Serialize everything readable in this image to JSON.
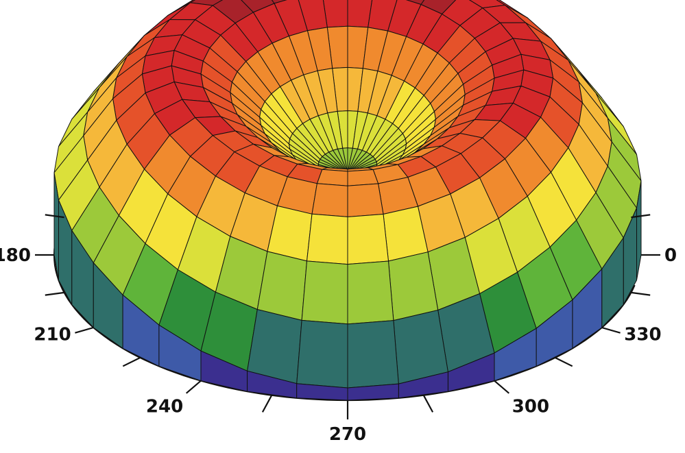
{
  "chart_data": {
    "type": "surface-3d-polar",
    "title": "",
    "axis": {
      "kind": "angular",
      "unit": "degrees",
      "labeled_ticks": [
        {
          "angle": 0,
          "label": "0"
        },
        {
          "angle": 180,
          "label": "180"
        },
        {
          "angle": 210,
          "label": "210"
        },
        {
          "angle": 240,
          "label": "240"
        },
        {
          "angle": 270,
          "label": "270"
        },
        {
          "angle": 300,
          "label": "300"
        },
        {
          "angle": 330,
          "label": "330"
        }
      ],
      "minor_ticks": [
        15,
        165,
        195,
        225,
        255,
        285,
        315,
        345
      ]
    },
    "surface": {
      "angular_divisions": 36,
      "radial_divisions": 10,
      "height_range": [
        0,
        1
      ],
      "profile": {
        "radius": [
          0.0,
          0.1,
          0.2,
          0.3,
          0.4,
          0.5,
          0.6,
          0.7,
          0.8,
          0.9,
          1.0
        ],
        "height_at_0": [
          0.4,
          0.44,
          0.54,
          0.66,
          0.78,
          0.86,
          0.9,
          0.86,
          0.74,
          0.55,
          0.36
        ],
        "height_at_90": [
          0.4,
          0.45,
          0.56,
          0.7,
          0.83,
          0.93,
          0.97,
          0.95,
          0.86,
          0.72,
          0.56
        ],
        "height_at_180": [
          0.4,
          0.44,
          0.54,
          0.67,
          0.79,
          0.88,
          0.92,
          0.88,
          0.76,
          0.58,
          0.4
        ],
        "height_at_270": [
          0.4,
          0.43,
          0.5,
          0.6,
          0.7,
          0.76,
          0.76,
          0.68,
          0.52,
          0.3,
          0.06
        ]
      }
    },
    "colormap": [
      "#3b2f8f",
      "#3e5aa8",
      "#2f6f6a",
      "#2e8f3a",
      "#5fb43a",
      "#9cc93a",
      "#dbe03a",
      "#f5e23a",
      "#f5b83a",
      "#f08a2e",
      "#e5522a",
      "#d4282a",
      "#a8222a"
    ]
  }
}
